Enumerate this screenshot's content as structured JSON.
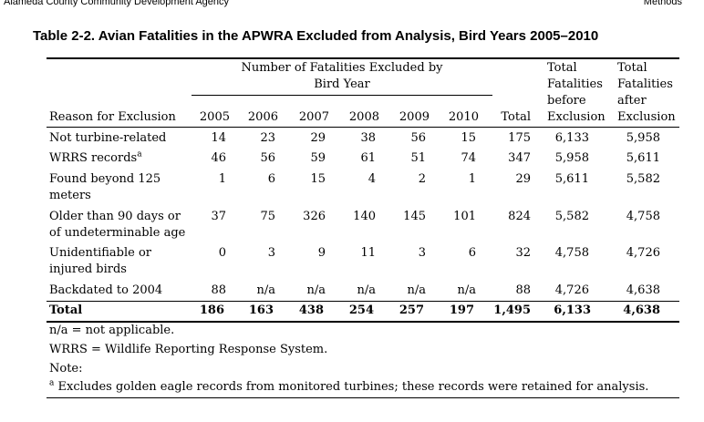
{
  "header": {
    "agency": "Alameda County Community Development Agency",
    "section": "Methods"
  },
  "table": {
    "title": "Table 2-2. Avian Fatalities in the APWRA Excluded from Analysis, Bird Years 2005–2010",
    "group_header_line1": "Number of Fatalities Excluded by",
    "group_header_line2": "Bird Year",
    "total_before_header": [
      "Total",
      "Fatalities",
      "before",
      "Exclusion"
    ],
    "total_after_header": [
      "Total",
      "Fatalities",
      "after",
      "Exclusion"
    ],
    "columns": [
      "Reason for Exclusion",
      "2005",
      "2006",
      "2007",
      "2008",
      "2009",
      "2010",
      "Total"
    ],
    "rows": [
      {
        "reason": [
          "Not turbine-related"
        ],
        "sup": "",
        "values": [
          "14",
          "23",
          "29",
          "38",
          "56",
          "15",
          "175",
          "6,133",
          "5,958"
        ]
      },
      {
        "reason": [
          "WRRS records"
        ],
        "sup": "a",
        "values": [
          "46",
          "56",
          "59",
          "61",
          "51",
          "74",
          "347",
          "5,958",
          "5,611"
        ]
      },
      {
        "reason": [
          "Found beyond 125",
          "meters"
        ],
        "sup": "",
        "values": [
          "1",
          "6",
          "15",
          "4",
          "2",
          "1",
          "29",
          "5,611",
          "5,582"
        ]
      },
      {
        "reason": [
          "Older than 90 days or",
          "of undeterminable age"
        ],
        "sup": "",
        "values": [
          "37",
          "75",
          "326",
          "140",
          "145",
          "101",
          "824",
          "5,582",
          "4,758"
        ]
      },
      {
        "reason": [
          "Unidentifiable or",
          "injured birds"
        ],
        "sup": "",
        "values": [
          "0",
          "3",
          "9",
          "11",
          "3",
          "6",
          "32",
          "4,758",
          "4,726"
        ]
      },
      {
        "reason": [
          "Backdated to 2004"
        ],
        "sup": "",
        "values": [
          "88",
          "n/a",
          "n/a",
          "n/a",
          "n/a",
          "n/a",
          "88",
          "4,726",
          "4,638"
        ]
      }
    ],
    "total_row": {
      "reason": "Total",
      "values": [
        "186",
        "163",
        "438",
        "254",
        "257",
        "197",
        "1,495",
        "6,133",
        "4,638"
      ]
    }
  },
  "footnotes": {
    "na": "n/a = not applicable.",
    "wrrs": "WRRS = Wildlife Reporting Response System.",
    "note_label": "Note:",
    "a_marker": "a",
    "a_text": "Excludes golden eagle records from monitored turbines; these records were retained for analysis."
  }
}
